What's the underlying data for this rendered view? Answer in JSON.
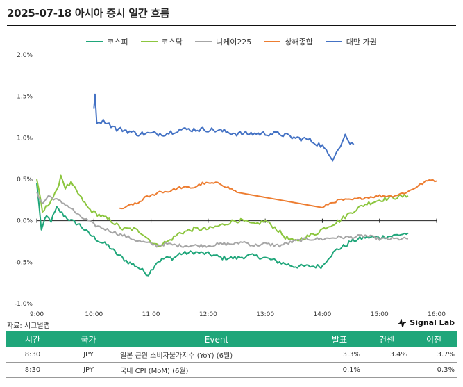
{
  "title": "2025-07-18 아시아 증시 일간 흐름",
  "source": "자료: 시그널랩",
  "brand": "Signal Lab",
  "colors": {
    "kospi": "#1fa67a",
    "kosdaq": "#8cc63f",
    "nikkei": "#a6a6a6",
    "shanghai": "#ed7d31",
    "taiwan": "#4472c4",
    "header": "#1fa67a"
  },
  "chart_data": {
    "type": "line",
    "title": "2025-07-18 아시아 증시 일간 흐름",
    "xlabel": "",
    "ylabel": "",
    "ylim": [
      -1.0,
      2.0
    ],
    "yticks": [
      "2.0%",
      "1.5%",
      "1.0%",
      "0.5%",
      "0.0%",
      "-0.5%",
      "-1.0%"
    ],
    "xlim": [
      "9:00",
      "16:00"
    ],
    "xticks": [
      "9:00",
      "10:00",
      "11:00",
      "12:00",
      "13:00",
      "14:00",
      "15:00",
      "16:00"
    ],
    "legend_position": "top-center",
    "grid": false,
    "series": [
      {
        "name": "코스피",
        "key": "kospi",
        "jitter": 0.025,
        "points": [
          [
            9.0,
            0.45
          ],
          [
            9.08,
            -0.1
          ],
          [
            9.17,
            0.05
          ],
          [
            9.25,
            0.0
          ],
          [
            9.35,
            0.15
          ],
          [
            9.5,
            0.05
          ],
          [
            9.6,
            0.0
          ],
          [
            9.75,
            -0.05
          ],
          [
            9.9,
            -0.15
          ],
          [
            10.0,
            -0.2
          ],
          [
            10.1,
            -0.25
          ],
          [
            10.25,
            -0.3
          ],
          [
            10.4,
            -0.4
          ],
          [
            10.5,
            -0.45
          ],
          [
            10.6,
            -0.5
          ],
          [
            10.75,
            -0.55
          ],
          [
            10.85,
            -0.6
          ],
          [
            10.95,
            -0.65
          ],
          [
            11.0,
            -0.6
          ],
          [
            11.1,
            -0.5
          ],
          [
            11.25,
            -0.45
          ],
          [
            11.4,
            -0.45
          ],
          [
            11.5,
            -0.4
          ],
          [
            11.75,
            -0.38
          ],
          [
            12.0,
            -0.4
          ],
          [
            12.25,
            -0.45
          ],
          [
            12.4,
            -0.45
          ],
          [
            12.5,
            -0.45
          ],
          [
            12.75,
            -0.42
          ],
          [
            13.0,
            -0.45
          ],
          [
            13.25,
            -0.5
          ],
          [
            13.5,
            -0.55
          ],
          [
            13.75,
            -0.55
          ],
          [
            13.95,
            -0.55
          ],
          [
            14.0,
            -0.55
          ],
          [
            14.1,
            -0.45
          ],
          [
            14.25,
            -0.35
          ],
          [
            14.4,
            -0.3
          ],
          [
            14.5,
            -0.25
          ],
          [
            14.75,
            -0.2
          ],
          [
            15.0,
            -0.2
          ],
          [
            15.25,
            -0.18
          ],
          [
            15.5,
            -0.15
          ]
        ]
      },
      {
        "name": "코스닥",
        "key": "kosdaq",
        "jitter": 0.025,
        "points": [
          [
            9.0,
            0.5
          ],
          [
            9.1,
            0.1
          ],
          [
            9.25,
            0.25
          ],
          [
            9.35,
            0.35
          ],
          [
            9.42,
            0.55
          ],
          [
            9.5,
            0.4
          ],
          [
            9.6,
            0.45
          ],
          [
            9.75,
            0.3
          ],
          [
            9.9,
            0.15
          ],
          [
            10.0,
            0.1
          ],
          [
            10.15,
            0.05
          ],
          [
            10.3,
            0.0
          ],
          [
            10.5,
            -0.1
          ],
          [
            10.7,
            -0.1
          ],
          [
            10.85,
            -0.15
          ],
          [
            11.0,
            -0.25
          ],
          [
            11.1,
            -0.3
          ],
          [
            11.3,
            -0.25
          ],
          [
            11.5,
            -0.15
          ],
          [
            11.75,
            -0.1
          ],
          [
            12.0,
            -0.1
          ],
          [
            12.25,
            -0.05
          ],
          [
            12.45,
            0.0
          ],
          [
            12.6,
            0.0
          ],
          [
            12.8,
            -0.05
          ],
          [
            13.0,
            0.0
          ],
          [
            13.2,
            -0.1
          ],
          [
            13.35,
            -0.2
          ],
          [
            13.5,
            -0.25
          ],
          [
            13.7,
            -0.2
          ],
          [
            13.9,
            -0.15
          ],
          [
            14.0,
            -0.1
          ],
          [
            14.15,
            -0.05
          ],
          [
            14.3,
            0.0
          ],
          [
            14.5,
            0.1
          ],
          [
            14.75,
            0.2
          ],
          [
            15.0,
            0.25
          ],
          [
            15.25,
            0.28
          ],
          [
            15.5,
            0.3
          ]
        ]
      },
      {
        "name": "니케이225",
        "key": "nikkei",
        "jitter": 0.02,
        "points": [
          [
            9.0,
            0.35
          ],
          [
            9.1,
            0.2
          ],
          [
            9.2,
            0.3
          ],
          [
            9.35,
            0.25
          ],
          [
            9.5,
            0.2
          ],
          [
            9.6,
            0.15
          ],
          [
            9.75,
            0.05
          ],
          [
            9.9,
            0.0
          ],
          [
            10.0,
            -0.05
          ],
          [
            10.2,
            -0.1
          ],
          [
            10.4,
            -0.15
          ],
          [
            10.6,
            -0.2
          ],
          [
            10.8,
            -0.25
          ],
          [
            11.0,
            -0.28
          ],
          [
            11.1,
            -0.3
          ],
          [
            11.25,
            -0.28
          ],
          [
            11.5,
            -0.3
          ],
          [
            11.75,
            -0.3
          ],
          [
            12.0,
            -0.3
          ],
          [
            12.25,
            -0.28
          ],
          [
            12.5,
            -0.28
          ],
          [
            12.6,
            -0.25
          ],
          [
            12.8,
            -0.3
          ],
          [
            13.0,
            -0.28
          ],
          [
            13.25,
            -0.3
          ],
          [
            13.5,
            -0.25
          ],
          [
            13.75,
            -0.22
          ],
          [
            14.0,
            -0.22
          ],
          [
            14.25,
            -0.2
          ],
          [
            14.5,
            -0.2
          ],
          [
            14.75,
            -0.18
          ],
          [
            15.0,
            -0.22
          ],
          [
            15.25,
            -0.22
          ],
          [
            15.5,
            -0.22
          ]
        ]
      },
      {
        "name": "상해종합",
        "key": "shanghai",
        "jitter": 0.015,
        "points": [
          [
            10.45,
            0.15
          ],
          [
            10.55,
            0.15
          ],
          [
            10.65,
            0.2
          ],
          [
            10.75,
            0.2
          ],
          [
            10.9,
            0.28
          ],
          [
            11.0,
            0.3
          ],
          [
            11.15,
            0.35
          ],
          [
            11.3,
            0.35
          ],
          [
            11.5,
            0.4
          ],
          [
            11.75,
            0.4
          ],
          [
            11.9,
            0.45
          ],
          [
            12.0,
            0.45
          ],
          [
            12.2,
            0.45
          ],
          [
            12.35,
            0.4
          ],
          [
            12.5,
            0.35
          ],
          [
            14.0,
            0.15
          ],
          [
            14.1,
            0.2
          ],
          [
            14.3,
            0.25
          ],
          [
            14.5,
            0.25
          ],
          [
            14.75,
            0.28
          ],
          [
            15.0,
            0.3
          ],
          [
            15.25,
            0.3
          ],
          [
            15.5,
            0.35
          ],
          [
            15.75,
            0.45
          ],
          [
            15.9,
            0.5
          ],
          [
            16.0,
            0.48
          ]
        ]
      },
      {
        "name": "대만 가권",
        "key": "taiwan",
        "jitter": 0.03,
        "points": [
          [
            10.0,
            1.35
          ],
          [
            10.02,
            1.5
          ],
          [
            10.05,
            1.2
          ],
          [
            10.2,
            1.2
          ],
          [
            10.4,
            1.1
          ],
          [
            10.5,
            1.1
          ],
          [
            10.75,
            1.05
          ],
          [
            11.0,
            1.05
          ],
          [
            11.25,
            1.05
          ],
          [
            11.5,
            1.1
          ],
          [
            11.75,
            1.1
          ],
          [
            12.0,
            1.1
          ],
          [
            12.25,
            1.08
          ],
          [
            12.5,
            1.05
          ],
          [
            12.75,
            1.05
          ],
          [
            13.0,
            1.05
          ],
          [
            13.25,
            1.05
          ],
          [
            13.5,
            1.0
          ],
          [
            13.75,
            0.98
          ],
          [
            14.0,
            0.9
          ],
          [
            14.1,
            0.8
          ],
          [
            14.18,
            0.75
          ],
          [
            14.25,
            0.85
          ],
          [
            14.35,
            0.95
          ],
          [
            14.4,
            1.05
          ],
          [
            14.45,
            0.95
          ],
          [
            14.55,
            0.92
          ]
        ]
      }
    ]
  },
  "table": {
    "headers": [
      "시간",
      "국가",
      "Event",
      "발표",
      "컨센",
      "이전"
    ],
    "rows": [
      [
        "8:30",
        "JPY",
        "일본 근원 소비자물가지수 (YoY) (6월)",
        "3.3%",
        "3.4%",
        "3.7%"
      ],
      [
        "8:30",
        "JPY",
        "국내 CPI (MoM) (6월)",
        "0.1%",
        "",
        "0.3%"
      ]
    ]
  }
}
